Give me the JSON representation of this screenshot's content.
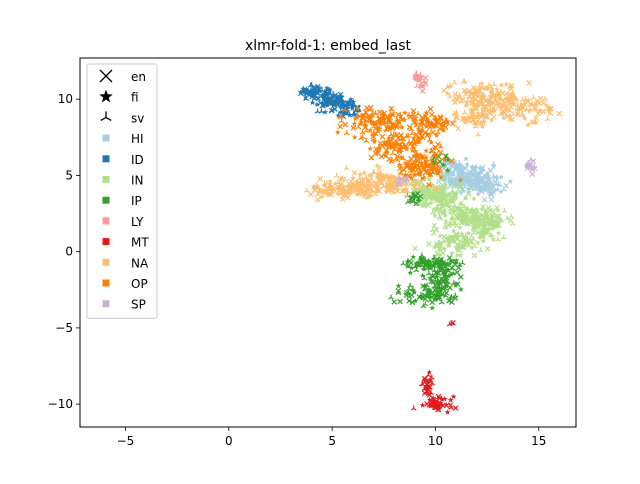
{
  "chart_data": {
    "type": "scatter",
    "title": "xlmr-fold-1: embed_last",
    "xlabel": "",
    "ylabel": "",
    "xlim": [
      -7.2,
      16.8
    ],
    "ylim": [
      -11.5,
      12.7
    ],
    "xticks": [
      -5,
      0,
      5,
      10,
      15
    ],
    "yticks": [
      -10,
      -5,
      0,
      5,
      10
    ],
    "grid": false,
    "legend_position": "upper-left",
    "marker_legend": [
      {
        "label": "en",
        "marker": "x"
      },
      {
        "label": "fi",
        "marker": "star"
      },
      {
        "label": "sv",
        "marker": "tri"
      }
    ],
    "series": [
      {
        "name": "HI",
        "color": "#a6cee3",
        "clusters": [
          {
            "cx": 11.4,
            "cy": 4.8,
            "sx": 0.6,
            "sy": 0.4,
            "n": 120
          },
          {
            "cx": 12.3,
            "cy": 4.5,
            "sx": 0.5,
            "sy": 0.45,
            "n": 90
          },
          {
            "cx": 10.6,
            "cy": 5.6,
            "sx": 0.4,
            "sy": 0.3,
            "n": 40
          }
        ]
      },
      {
        "name": "ID",
        "color": "#1f78b4",
        "clusters": [
          {
            "cx": 4.1,
            "cy": 10.4,
            "sx": 0.4,
            "sy": 0.25,
            "n": 60
          },
          {
            "cx": 4.9,
            "cy": 9.9,
            "sx": 0.4,
            "sy": 0.25,
            "n": 60
          },
          {
            "cx": 5.7,
            "cy": 9.4,
            "sx": 0.35,
            "sy": 0.25,
            "n": 50
          }
        ]
      },
      {
        "name": "IN",
        "color": "#b2df8a",
        "clusters": [
          {
            "cx": 10.2,
            "cy": 3.6,
            "sx": 0.6,
            "sy": 0.45,
            "n": 130
          },
          {
            "cx": 11.5,
            "cy": 2.3,
            "sx": 0.7,
            "sy": 0.4,
            "n": 120
          },
          {
            "cx": 12.6,
            "cy": 1.8,
            "sx": 0.5,
            "sy": 0.5,
            "n": 80
          },
          {
            "cx": 10.9,
            "cy": 0.6,
            "sx": 0.6,
            "sy": 0.5,
            "n": 90
          },
          {
            "cx": 9.3,
            "cy": 4.2,
            "sx": 0.4,
            "sy": 0.3,
            "n": 40
          }
        ]
      },
      {
        "name": "IP",
        "color": "#33a02c",
        "clusters": [
          {
            "cx": 9.8,
            "cy": -0.8,
            "sx": 0.8,
            "sy": 0.2,
            "n": 80
          },
          {
            "cx": 10.4,
            "cy": -1.6,
            "sx": 0.4,
            "sy": 0.5,
            "n": 60
          },
          {
            "cx": 9.7,
            "cy": -2.8,
            "sx": 0.7,
            "sy": 0.35,
            "n": 80
          },
          {
            "cx": 8.9,
            "cy": 3.5,
            "sx": 0.2,
            "sy": 0.2,
            "n": 15
          },
          {
            "cx": 10.2,
            "cy": 5.8,
            "sx": 0.3,
            "sy": 0.4,
            "n": 15
          }
        ]
      },
      {
        "name": "LY",
        "color": "#fb9a99",
        "clusters": [
          {
            "cx": 9.3,
            "cy": 11.2,
            "sx": 0.15,
            "sy": 0.25,
            "n": 25
          }
        ]
      },
      {
        "name": "MT",
        "color": "#e31a1c",
        "clusters": [
          {
            "cx": 9.6,
            "cy": -8.7,
            "sx": 0.15,
            "sy": 0.35,
            "n": 25
          },
          {
            "cx": 10.0,
            "cy": -10.0,
            "sx": 0.35,
            "sy": 0.25,
            "n": 45
          },
          {
            "cx": 10.8,
            "cy": -4.7,
            "sx": 0.05,
            "sy": 0.05,
            "n": 3
          }
        ]
      },
      {
        "name": "NA",
        "color": "#fdbf6f",
        "clusters": [
          {
            "cx": 5.9,
            "cy": 4.1,
            "sx": 1.0,
            "sy": 0.35,
            "n": 130
          },
          {
            "cx": 7.6,
            "cy": 4.5,
            "sx": 0.9,
            "sy": 0.45,
            "n": 130
          },
          {
            "cx": 12.3,
            "cy": 10.2,
            "sx": 0.9,
            "sy": 0.5,
            "n": 130
          },
          {
            "cx": 14.0,
            "cy": 9.3,
            "sx": 0.8,
            "sy": 0.4,
            "n": 100
          },
          {
            "cx": 12.0,
            "cy": 8.8,
            "sx": 0.5,
            "sy": 0.4,
            "n": 50
          }
        ]
      },
      {
        "name": "OP",
        "color": "#ff7f00",
        "clusters": [
          {
            "cx": 7.2,
            "cy": 8.6,
            "sx": 0.9,
            "sy": 0.45,
            "n": 110
          },
          {
            "cx": 8.2,
            "cy": 7.0,
            "sx": 0.8,
            "sy": 0.5,
            "n": 110
          },
          {
            "cx": 9.3,
            "cy": 5.6,
            "sx": 0.6,
            "sy": 0.4,
            "n": 90
          },
          {
            "cx": 9.8,
            "cy": 8.4,
            "sx": 0.5,
            "sy": 0.4,
            "n": 60
          }
        ]
      },
      {
        "name": "SP",
        "color": "#cab2d6",
        "clusters": [
          {
            "cx": 14.6,
            "cy": 5.7,
            "sx": 0.15,
            "sy": 0.2,
            "n": 15
          },
          {
            "cx": 8.5,
            "cy": 4.7,
            "sx": 0.2,
            "sy": 0.2,
            "n": 8
          }
        ]
      }
    ]
  }
}
